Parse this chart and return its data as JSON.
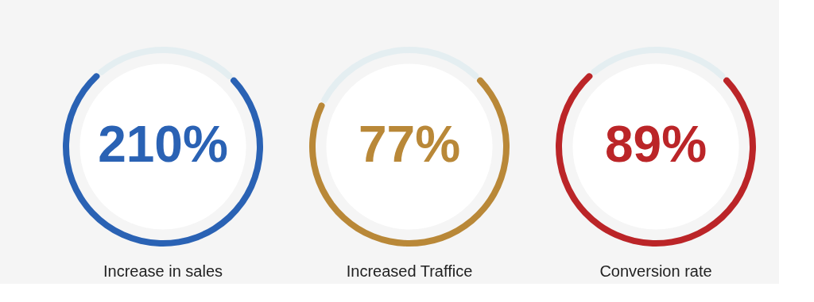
{
  "chart_data": [
    {
      "type": "donut",
      "title": "Increase in sales",
      "annotations": [
        "210%"
      ],
      "categories": [
        null,
        null
      ],
      "values": [
        76,
        24
      ],
      "colors": [
        "#2a62b4",
        "#e4eef1"
      ]
    },
    {
      "type": "donut",
      "title": "Increased Traffice",
      "annotations": [
        "77%"
      ],
      "categories": [
        null,
        null
      ],
      "values": [
        70,
        30
      ],
      "colors": [
        "#b98838",
        "#e4eef1"
      ]
    },
    {
      "type": "donut",
      "title": "Conversion rate",
      "annotations": [
        "89%"
      ],
      "categories": [
        null,
        null
      ],
      "values": [
        76,
        24
      ],
      "colors": [
        "#bb2528",
        "#e4eef1"
      ]
    }
  ]
}
